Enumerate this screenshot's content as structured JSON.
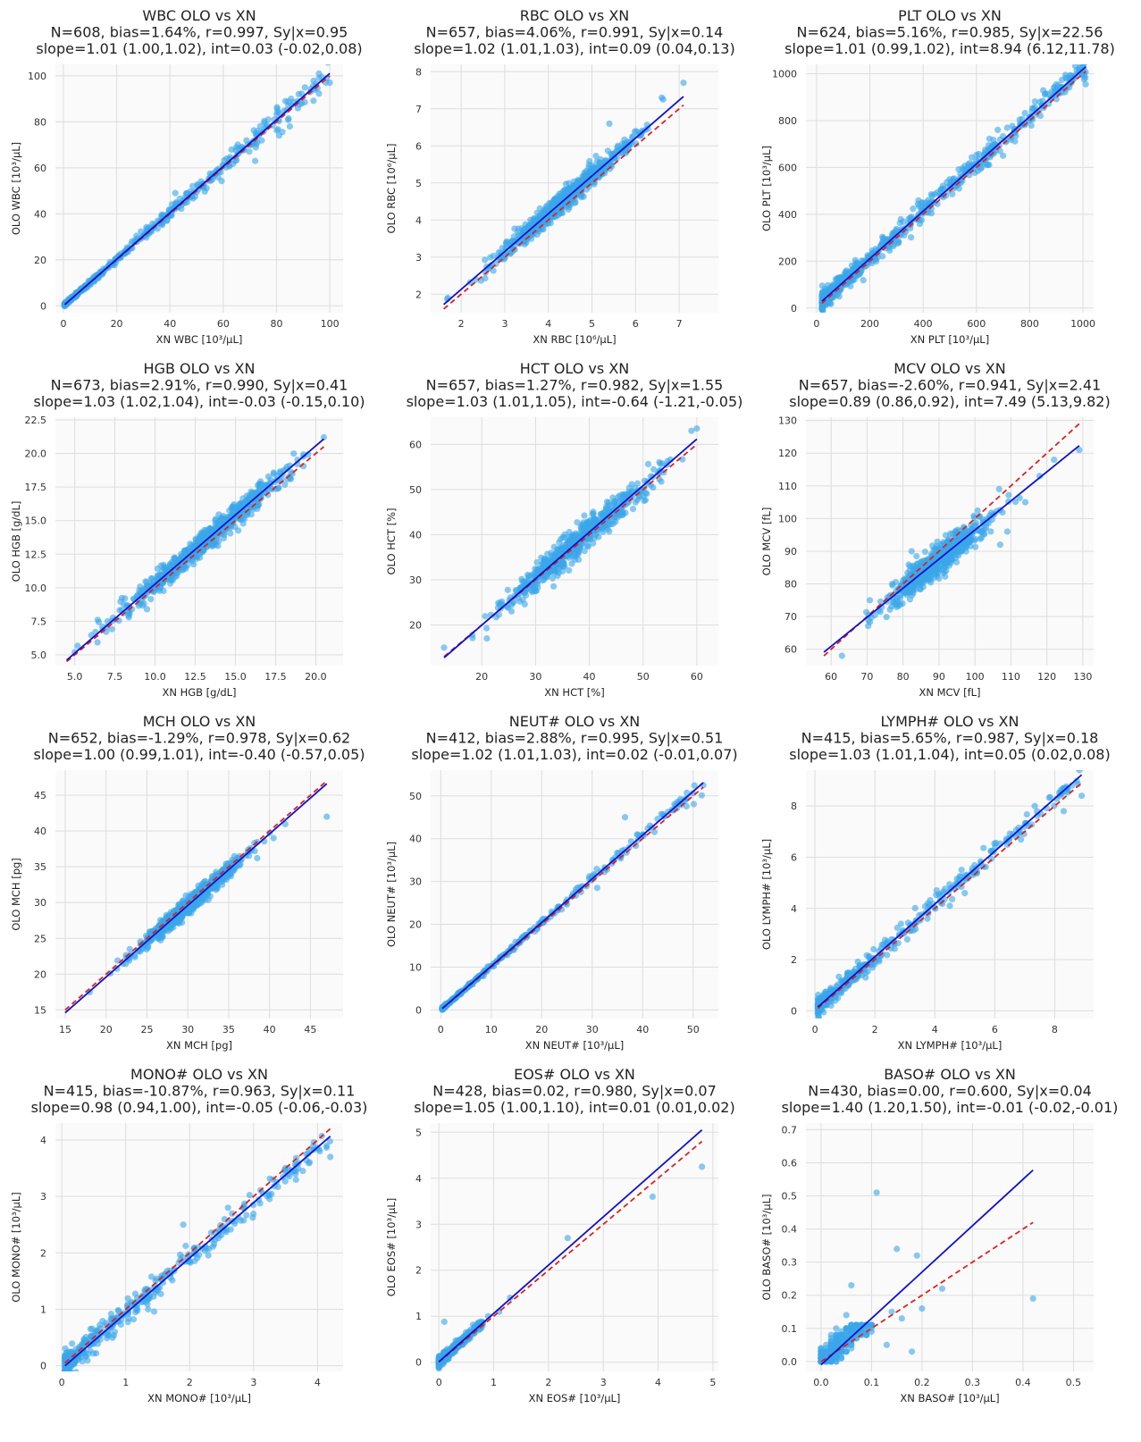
{
  "chart_data": [
    {
      "type": "scatter",
      "title": [
        "WBC OLO vs XN",
        "N=608, bias=1.64%, r=0.997, Sy|x=0.95",
        "slope=1.01 (1.00,1.02), int=0.03 (-0.02,0.08)"
      ],
      "xlabel": "XN WBC [10³/μL]",
      "ylabel": "OLO WBC [10³/μL]",
      "xlim": [
        -3,
        105
      ],
      "ylim": [
        -3,
        105
      ],
      "xticks": [
        0,
        20,
        40,
        60,
        80,
        100
      ],
      "yticks": [
        0,
        20,
        40,
        60,
        80,
        100
      ],
      "tick_decimals": 0,
      "regression": {
        "slope": 1.01,
        "intercept": 0.03
      },
      "identity": true,
      "n": 608,
      "seed": 1,
      "data_min": 0.5,
      "data_max": 100,
      "dist_mode": "skew",
      "skew": 3.2,
      "noise_sd": 0.95,
      "noise_prop": 0.03,
      "outliers": [
        [
          100,
          97
        ],
        [
          85,
          78
        ],
        [
          72,
          63
        ],
        [
          81,
          74
        ],
        [
          88,
          89
        ],
        [
          42,
          49
        ],
        [
          56,
          55
        ]
      ]
    },
    {
      "type": "scatter",
      "title": [
        "RBC OLO vs XN",
        "N=657, bias=4.06%, r=0.991, Sy|x=0.14",
        "slope=1.02 (1.01,1.03), int=0.09 (0.04,0.13)"
      ],
      "xlabel": "XN RBC [10⁶/μL]",
      "ylabel": "OLO RBC [10⁶/μL]",
      "xlim": [
        1.3,
        7.9
      ],
      "ylim": [
        1.5,
        8.2
      ],
      "xticks": [
        2,
        3,
        4,
        5,
        6,
        7
      ],
      "yticks": [
        2,
        3,
        4,
        5,
        6,
        7,
        8
      ],
      "tick_decimals": 0,
      "regression": {
        "slope": 1.02,
        "intercept": 0.09
      },
      "identity": true,
      "n": 657,
      "seed": 2,
      "data_min": 1.6,
      "data_max": 7.1,
      "dist_mode": "normal",
      "mean": 4.4,
      "sd": 0.75,
      "noise_sd": 0.14,
      "noise_prop": 0,
      "outliers": [
        [
          6.6,
          7.3
        ],
        [
          7.1,
          7.7
        ],
        [
          5.4,
          6.6
        ]
      ]
    },
    {
      "type": "scatter",
      "title": [
        "PLT OLO vs XN",
        "N=624, bias=5.16%, r=0.985, Sy|x=22.56",
        "slope=1.01 (0.99,1.02), int=8.94 (6.12,11.78)"
      ],
      "xlabel": "XN PLT [10³/μL]",
      "ylabel": "OLO PLT [10³/μL]",
      "xlim": [
        -40,
        1040
      ],
      "ylim": [
        -20,
        1040
      ],
      "xticks": [
        0,
        200,
        400,
        600,
        800,
        1000
      ],
      "yticks": [
        0,
        200,
        400,
        600,
        800,
        1000
      ],
      "tick_decimals": 0,
      "regression": {
        "slope": 1.01,
        "intercept": 8.94
      },
      "identity": true,
      "n": 624,
      "seed": 3,
      "data_min": 20,
      "data_max": 1010,
      "dist_mode": "skew",
      "skew": 2.0,
      "noise_sd": 22.5,
      "noise_prop": 0,
      "outliers": [
        [
          1010,
          955
        ],
        [
          960,
          985
        ],
        [
          700,
          650
        ],
        [
          680,
          760
        ],
        [
          620,
          600
        ]
      ]
    },
    {
      "type": "scatter",
      "title": [
        "HGB OLO vs XN",
        "N=673, bias=2.91%, r=0.990, Sy|x=0.41",
        "slope=1.03 (1.02,1.04), int=-0.03 (-0.15,0.10)"
      ],
      "xlabel": "XN HGB [g/dL]",
      "ylabel": "OLO HGB [g/dL]",
      "xlim": [
        3.8,
        21.7
      ],
      "ylim": [
        4.2,
        22.7
      ],
      "xticks": [
        5,
        7.5,
        10,
        12.5,
        15,
        17.5,
        20
      ],
      "yticks": [
        5,
        7.5,
        10,
        12.5,
        15,
        17.5,
        20,
        22.5
      ],
      "tick_decimals": 1,
      "regression": {
        "slope": 1.03,
        "intercept": -0.03
      },
      "identity": true,
      "n": 673,
      "seed": 4,
      "data_min": 4.5,
      "data_max": 20.5,
      "dist_mode": "normal",
      "mean": 13,
      "sd": 2.6,
      "noise_sd": 0.41,
      "noise_prop": 0,
      "outliers": [
        [
          5,
          5.2
        ],
        [
          20.5,
          21.2
        ],
        [
          9.5,
          8.4
        ]
      ]
    },
    {
      "type": "scatter",
      "title": [
        "HCT OLO vs XN",
        "N=657, bias=1.27%, r=0.982, Sy|x=1.55",
        "slope=1.03 (1.01,1.05), int=-0.64 (-1.21,-0.05)"
      ],
      "xlabel": "XN HCT [%]",
      "ylabel": "OLO HCT [%]",
      "xlim": [
        10.5,
        64
      ],
      "ylim": [
        11,
        66
      ],
      "xticks": [
        20,
        30,
        40,
        50,
        60
      ],
      "yticks": [
        20,
        30,
        40,
        50,
        60
      ],
      "tick_decimals": 0,
      "regression": {
        "slope": 1.03,
        "intercept": -0.64
      },
      "identity": true,
      "n": 657,
      "seed": 5,
      "data_min": 13,
      "data_max": 60,
      "dist_mode": "normal",
      "mean": 38,
      "sd": 7,
      "noise_sd": 1.55,
      "noise_prop": 0,
      "outliers": [
        [
          13,
          15
        ],
        [
          60,
          63.5
        ],
        [
          59,
          63
        ]
      ]
    },
    {
      "type": "scatter",
      "title": [
        "MCV OLO vs XN",
        "N=657, bias=-2.60%, r=0.941, Sy|x=2.41",
        "slope=0.89 (0.86,0.92), int=7.49 (5.13,9.82)"
      ],
      "xlabel": "XN MCV [fL]",
      "ylabel": "OLO MCV [fL]",
      "xlim": [
        53,
        133
      ],
      "ylim": [
        55,
        131
      ],
      "xticks": [
        60,
        70,
        80,
        90,
        100,
        110,
        120,
        130
      ],
      "yticks": [
        60,
        70,
        80,
        90,
        100,
        110,
        120,
        130
      ],
      "tick_decimals": 0,
      "regression": {
        "slope": 0.89,
        "intercept": 7.49
      },
      "identity": true,
      "n": 657,
      "seed": 6,
      "data_min": 58,
      "data_max": 129,
      "dist_mode": "normal",
      "mean": 89,
      "sd": 7,
      "noise_sd": 2.41,
      "noise_prop": 0,
      "outliers": [
        [
          129,
          121
        ],
        [
          118,
          113
        ],
        [
          122,
          118
        ],
        [
          114,
          105
        ],
        [
          105,
          101
        ],
        [
          107,
          92
        ],
        [
          109,
          96
        ],
        [
          63,
          58
        ]
      ]
    },
    {
      "type": "scatter",
      "title": [
        "MCH OLO vs XN",
        "N=652, bias=-1.29%, r=0.978, Sy|x=0.62",
        "slope=1.00 (0.99,1.01), int=-0.40 (-0.57,0.05)"
      ],
      "xlabel": "XN MCH [pg]",
      "ylabel": "OLO MCH [pg]",
      "xlim": [
        13.8,
        49
      ],
      "ylim": [
        13.8,
        48.5
      ],
      "xticks": [
        15,
        20,
        25,
        30,
        35,
        40,
        45
      ],
      "yticks": [
        15,
        20,
        25,
        30,
        35,
        40,
        45
      ],
      "tick_decimals": 0,
      "regression": {
        "slope": 1.0,
        "intercept": -0.4
      },
      "identity": true,
      "n": 652,
      "seed": 7,
      "data_min": 15,
      "data_max": 47,
      "dist_mode": "normal",
      "mean": 30,
      "sd": 3.2,
      "noise_sd": 0.62,
      "noise_prop": 0,
      "outliers": [
        [
          47,
          42
        ],
        [
          40.5,
          39
        ],
        [
          38.5,
          36.2
        ],
        [
          18,
          17.5
        ]
      ]
    },
    {
      "type": "scatter",
      "title": [
        "NEUT# OLO vs XN",
        "N=412, bias=2.88%, r=0.995, Sy|x=0.51",
        "slope=1.02 (1.01,1.03), int=0.02 (-0.01,0.07)"
      ],
      "xlabel": "XN NEUT# [10³/μL]",
      "ylabel": "OLO NEUT# [10³/μL]",
      "xlim": [
        -2,
        55
      ],
      "ylim": [
        -2,
        56
      ],
      "xticks": [
        0,
        10,
        20,
        30,
        40,
        50
      ],
      "yticks": [
        0,
        10,
        20,
        30,
        40,
        50
      ],
      "tick_decimals": 0,
      "regression": {
        "slope": 1.02,
        "intercept": 0.02
      },
      "identity": true,
      "n": 412,
      "seed": 8,
      "data_min": 0.3,
      "data_max": 52,
      "dist_mode": "skew",
      "skew": 3.5,
      "noise_sd": 0.5,
      "noise_prop": 0.03,
      "outliers": [
        [
          36.5,
          45
        ],
        [
          31,
          28.5
        ],
        [
          30,
          30.5
        ],
        [
          52,
          52.5
        ]
      ]
    },
    {
      "type": "scatter",
      "title": [
        "LYMPH# OLO vs XN",
        "N=415, bias=5.65%, r=0.987, Sy|x=0.18",
        "slope=1.03 (1.01,1.04), int=0.05 (0.02,0.08)"
      ],
      "xlabel": "XN LYMPH# [10³/μL]",
      "ylabel": "OLO LYMPH# [10³/μL]",
      "xlim": [
        -0.3,
        9.3
      ],
      "ylim": [
        -0.3,
        9.4
      ],
      "xticks": [
        0,
        2,
        4,
        6,
        8
      ],
      "yticks": [
        0,
        2,
        4,
        6,
        8
      ],
      "tick_decimals": 0,
      "regression": {
        "slope": 1.03,
        "intercept": 0.05
      },
      "identity": true,
      "n": 415,
      "seed": 9,
      "data_min": 0.1,
      "data_max": 8.9,
      "dist_mode": "skew",
      "skew": 2.5,
      "noise_sd": 0.18,
      "noise_prop": 0,
      "outliers": [
        [
          8.9,
          8.4
        ],
        [
          8.3,
          7.8
        ],
        [
          6.8,
          6.9
        ],
        [
          6.6,
          6.9
        ],
        [
          5.0,
          4.6
        ],
        [
          4.5,
          4.1
        ]
      ]
    },
    {
      "type": "scatter",
      "title": [
        "MONO# OLO vs XN",
        "N=415, bias=-10.87%, r=0.963, Sy|x=0.11",
        "slope=0.98 (0.94,1.00), int=-0.05 (-0.06,-0.03)"
      ],
      "xlabel": "XN MONO# [10³/μL]",
      "ylabel": "OLO MONO# [10³/μL]",
      "xlim": [
        -0.1,
        4.4
      ],
      "ylim": [
        -0.1,
        4.3
      ],
      "xticks": [
        0,
        1,
        2,
        3,
        4
      ],
      "yticks": [
        0,
        1,
        2,
        3,
        4
      ],
      "tick_decimals": 0,
      "regression": {
        "slope": 0.98,
        "intercept": -0.05
      },
      "identity": true,
      "n": 415,
      "seed": 10,
      "data_min": 0.05,
      "data_max": 4.2,
      "dist_mode": "skew",
      "skew": 2.3,
      "noise_sd": 0.11,
      "noise_prop": 0,
      "outliers": [
        [
          4.2,
          3.7
        ],
        [
          3.3,
          3.3
        ],
        [
          2.6,
          2.8
        ],
        [
          1.9,
          2.5
        ],
        [
          1.65,
          1.68
        ],
        [
          1.35,
          1.0
        ]
      ]
    },
    {
      "type": "scatter",
      "title": [
        "EOS# OLO vs XN",
        "N=428, bias=0.02, r=0.980, Sy|x=0.07",
        "slope=1.05 (1.00,1.10), int=0.01 (0.01,0.02)"
      ],
      "xlabel": "XN EOS# [10³/μL]",
      "ylabel": "OLO EOS# [10³/μL]",
      "xlim": [
        -0.15,
        5.1
      ],
      "ylim": [
        -0.2,
        5.2
      ],
      "xticks": [
        0,
        1,
        2,
        3,
        4,
        5
      ],
      "yticks": [
        0,
        1,
        2,
        3,
        4,
        5
      ],
      "tick_decimals": 0,
      "regression": {
        "slope": 1.05,
        "intercept": 0.01
      },
      "identity": true,
      "n": 428,
      "seed": 11,
      "data_min": 0.0,
      "data_max": 0.8,
      "dist_mode": "skew",
      "skew": 2.4,
      "noise_sd": 0.05,
      "noise_prop": 0,
      "outliers": [
        [
          4.8,
          4.25
        ],
        [
          3.9,
          3.6
        ],
        [
          2.35,
          2.7
        ],
        [
          1.3,
          1.4
        ],
        [
          1.1,
          1.1
        ],
        [
          0.9,
          1.0
        ],
        [
          0.1,
          0.88
        ]
      ]
    },
    {
      "type": "scatter",
      "title": [
        "BASO# OLO vs XN",
        "N=430, bias=0.00, r=0.600, Sy|x=0.04",
        "slope=1.40 (1.20,1.50), int=-0.01 (-0.02,-0.01)"
      ],
      "xlabel": "XN BASO# [10³/μL]",
      "ylabel": "OLO BASO# [10³/μL]",
      "xlim": [
        -0.03,
        0.54
      ],
      "ylim": [
        -0.03,
        0.72
      ],
      "xticks": [
        0.0,
        0.1,
        0.2,
        0.3,
        0.4,
        0.5
      ],
      "yticks": [
        0.0,
        0.1,
        0.2,
        0.3,
        0.4,
        0.5,
        0.6,
        0.7
      ],
      "tick_decimals": 1,
      "regression": {
        "slope": 1.4,
        "intercept": -0.01
      },
      "identity": true,
      "n": 430,
      "seed": 12,
      "data_min": 0.0,
      "data_max": 0.1,
      "dist_mode": "quantized",
      "step": 0.01,
      "ymax_q": 0.11,
      "noise_sd": 0.02,
      "noise_prop": 0,
      "outliers": [
        [
          0.11,
          0.51
        ],
        [
          0.15,
          0.34
        ],
        [
          0.19,
          0.32
        ],
        [
          0.42,
          0.19
        ],
        [
          0.24,
          0.22
        ],
        [
          0.2,
          0.16
        ],
        [
          0.14,
          0.15
        ],
        [
          0.18,
          0.03
        ],
        [
          0.13,
          0.05
        ],
        [
          0.16,
          0.13
        ],
        [
          0.06,
          0.23
        ],
        [
          0.05,
          0.14
        ]
      ]
    }
  ]
}
